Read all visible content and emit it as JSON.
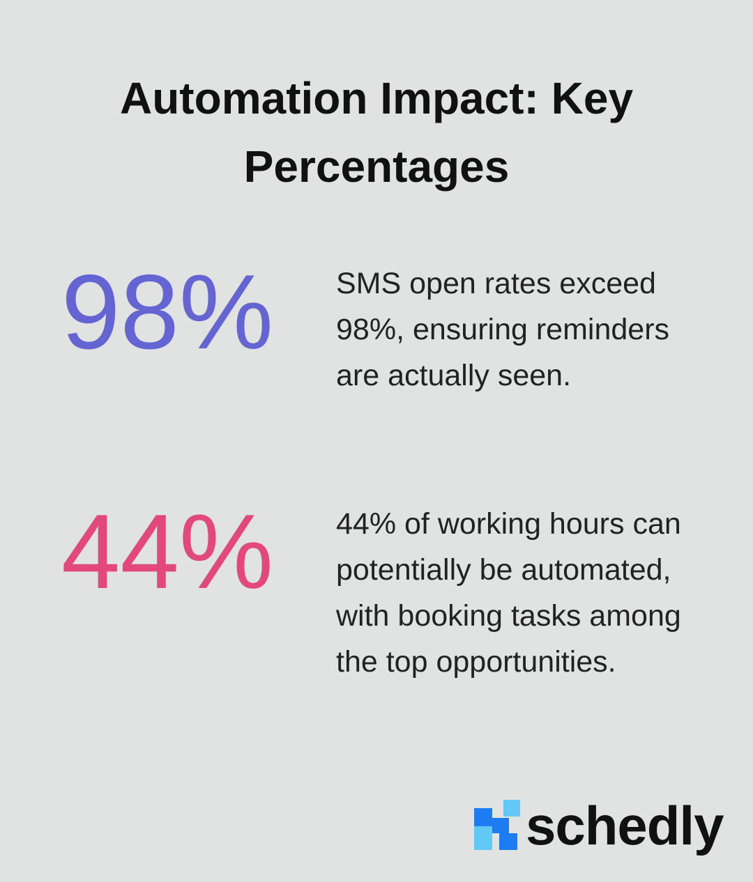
{
  "header": {
    "title": "Automation Impact: Key Percentages"
  },
  "stats": [
    {
      "value": "98%",
      "description": "SMS open rates exceed 98%, ensuring reminders are actually seen."
    },
    {
      "value": "44%",
      "description": "44% of working hours can potentially be automated, with booking tasks among the top opportunities."
    }
  ],
  "brand": {
    "name": "schedly"
  }
}
